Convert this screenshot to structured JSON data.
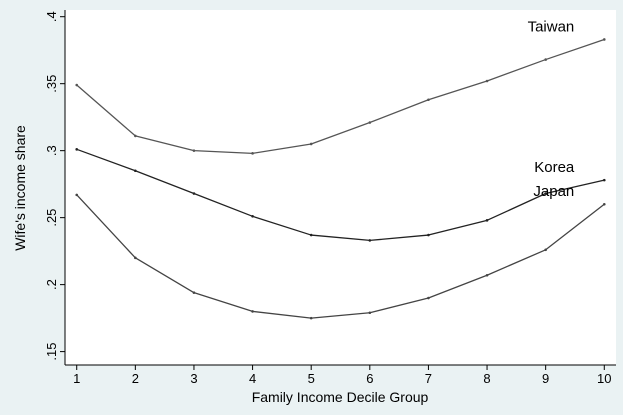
{
  "chart_data": {
    "type": "line",
    "title": "",
    "xlabel": "Family Income Decile Group",
    "ylabel": "Wife's income share",
    "x": [
      1,
      2,
      3,
      4,
      5,
      6,
      7,
      8,
      9,
      10
    ],
    "xlim": [
      0.8,
      10.2
    ],
    "ylim": [
      0.14,
      0.405
    ],
    "x_ticks": [
      "1",
      "2",
      "3",
      "4",
      "5",
      "6",
      "7",
      "8",
      "9",
      "10"
    ],
    "y_ticks": [
      {
        "value": 0.15,
        "label": ".15"
      },
      {
        "value": 0.2,
        "label": ".2"
      },
      {
        "value": 0.25,
        "label": ".25"
      },
      {
        "value": 0.3,
        "label": ".3"
      },
      {
        "value": 0.35,
        "label": ".35"
      },
      {
        "value": 0.4,
        "label": ".4"
      }
    ],
    "grid": false,
    "series": [
      {
        "name": "Taiwan",
        "values": [
          0.349,
          0.311,
          0.3,
          0.298,
          0.305,
          0.321,
          0.338,
          0.352,
          0.368,
          0.383
        ],
        "color": "#555555"
      },
      {
        "name": "Korea",
        "values": [
          0.301,
          0.285,
          0.268,
          0.251,
          0.237,
          0.233,
          0.237,
          0.248,
          0.268,
          0.278
        ],
        "color": "#222222"
      },
      {
        "name": "Japan",
        "values": [
          0.267,
          0.22,
          0.194,
          0.18,
          0.175,
          0.179,
          0.19,
          0.207,
          0.226,
          0.26
        ],
        "color": "#444444"
      }
    ]
  }
}
